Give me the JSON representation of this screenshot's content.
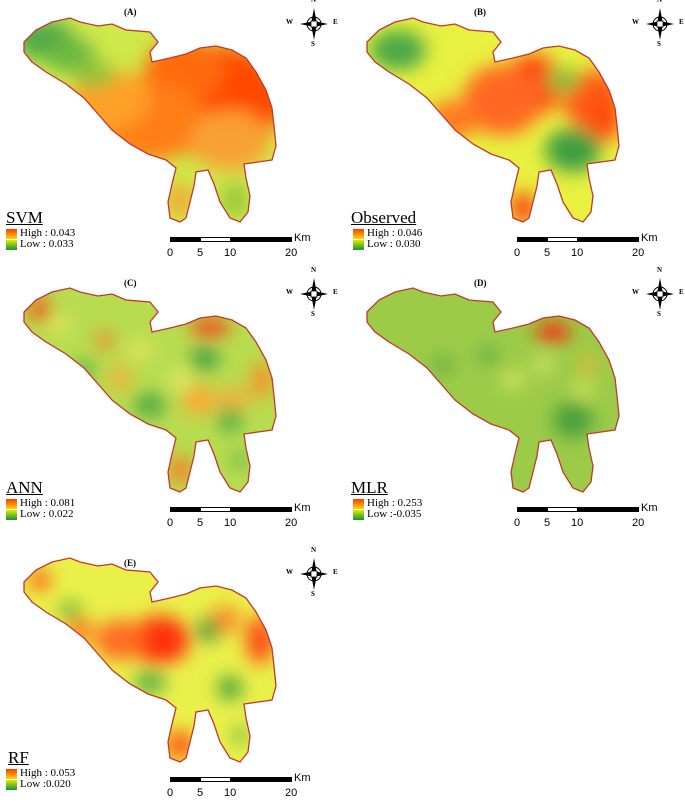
{
  "panels": [
    {
      "label": "(A)",
      "model": "SVM",
      "high": "High : 0.043",
      "low": "Low : 0.033",
      "pattern": "svm",
      "fills": {
        "base": "#cfe84a",
        "hot": [
          "#ff4a00",
          "#ff6a10",
          "#ff7d18",
          "#f9a030",
          "#ffa028"
        ],
        "cool": [
          "#4fa84a",
          "#6ab840",
          "#93c23a"
        ],
        "accent": []
      }
    },
    {
      "label": "(B)",
      "model": "Observed",
      "high": "High : 0.046",
      "low": "Low : 0.030",
      "pattern": "observed",
      "fills": {
        "base": "#e8f040",
        "hot": [
          "#ff3a10",
          "#ff6820",
          "#ff5a18",
          "#ff4a10",
          "#ff7a20"
        ],
        "cool": [
          "#3e9e42",
          "#4aa84a",
          "#7fc03e"
        ],
        "accent": []
      }
    },
    {
      "label": "(C)",
      "model": "ANN",
      "high": "High : 0.081",
      "low": "Low : 0.022",
      "pattern": "ann",
      "fills": {
        "base": "#b8dc50",
        "hot": [
          "#ff2a10",
          "#ff8a20",
          "#ffa830",
          "#ff7020"
        ],
        "cool": [
          "#3c9e40",
          "#4aa844",
          "#5aaf48"
        ],
        "accent": [
          "#f8e860",
          "#f4f070"
        ]
      }
    },
    {
      "label": "(D)",
      "model": "MLR",
      "high": "High : 0.253",
      "low": "Low :-0.035",
      "pattern": "mlr",
      "fills": {
        "base": "#9ccb48",
        "hot": [
          "#ff2010",
          "#ffb030"
        ],
        "cool": [
          "#4a9e3c",
          "#5aa844"
        ],
        "accent": [
          "#e8f060",
          "#f0f070"
        ]
      }
    },
    {
      "label": "(E)",
      "model": "RF",
      "high": "High : 0.053",
      "low": "Low :0.020",
      "pattern": "rf",
      "fills": {
        "base": "#eaf04a",
        "hot": [
          "#ff3010",
          "#ff6a20",
          "#ff4a18",
          "#ff8a28",
          "#ff5010"
        ],
        "cool": [
          "#3c9e40",
          "#56ae46",
          "#78bc40"
        ],
        "accent": []
      }
    }
  ],
  "compass": {
    "n": "N",
    "s": "S",
    "e": "E",
    "w": "W"
  },
  "scalebar": {
    "ticks": [
      "0",
      "5",
      "10",
      "20"
    ],
    "unit": "Km"
  }
}
